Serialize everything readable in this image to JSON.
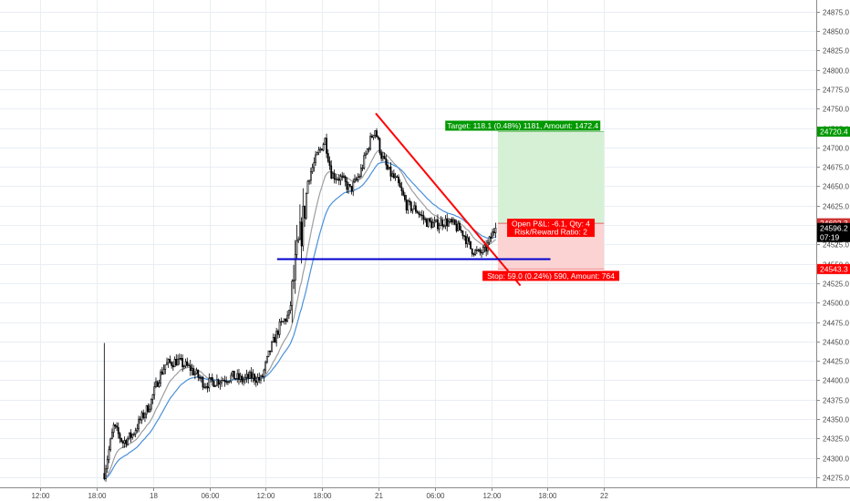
{
  "chart_data": {
    "type": "candlestick",
    "grid": true,
    "y_axis_position": "right",
    "ylim": [
      24262,
      24890
    ],
    "y_ticks": [
      24275,
      24300,
      24325,
      24350,
      24375,
      24400,
      24425,
      24450,
      24475,
      24500,
      24525,
      24550,
      24575,
      24600,
      24625,
      24650,
      24675,
      24700,
      24725,
      24750,
      24775,
      24800,
      24825,
      24850,
      24875
    ],
    "y_tick_labels": [
      "24275.0",
      "24300.0",
      "24325.0",
      "24350.0",
      "24375.0",
      "24400.0",
      "24425.0",
      "24450.0",
      "24475.0",
      "24500.0",
      "24525.0",
      "24550.0",
      "24575.0",
      "24600.0",
      "24625.0",
      "24650.0",
      "24675.0",
      "24700.0",
      "24725.0",
      "24750.0",
      "24775.0",
      "24800.0",
      "24825.0",
      "24850.0",
      "24875.0"
    ],
    "x_hours_range": [
      -16.3,
      70.6
    ],
    "x_ticks": [
      {
        "label": "12:00",
        "hour": -12
      },
      {
        "label": "18:00",
        "hour": -6
      },
      {
        "label": "18",
        "hour": 0
      },
      {
        "label": "06:00",
        "hour": 6
      },
      {
        "label": "12:00",
        "hour": 12
      },
      {
        "label": "18:00",
        "hour": 18
      },
      {
        "label": "21",
        "hour": 24
      },
      {
        "label": "06:00",
        "hour": 30
      },
      {
        "label": "12:00",
        "hour": 36
      },
      {
        "label": "18:00",
        "hour": 42
      },
      {
        "label": "22",
        "hour": 48
      }
    ],
    "price_keys": [
      [
        -5.2,
        24280
      ],
      [
        -4.2,
        24340
      ],
      [
        -3.2,
        24320
      ],
      [
        -2.2,
        24330
      ],
      [
        -1.3,
        24350
      ],
      [
        -0.3,
        24370
      ],
      [
        0.5,
        24400
      ],
      [
        1.3,
        24420
      ],
      [
        2.5,
        24425
      ],
      [
        4.0,
        24415
      ],
      [
        5.5,
        24395
      ],
      [
        7.0,
        24400
      ],
      [
        8.5,
        24405
      ],
      [
        9.5,
        24400
      ],
      [
        10.5,
        24405
      ],
      [
        11.5,
        24400
      ],
      [
        12.5,
        24440
      ],
      [
        13.5,
        24470
      ],
      [
        14.5,
        24485
      ],
      [
        15.3,
        24560
      ],
      [
        15.9,
        24600
      ],
      [
        16.5,
        24660
      ],
      [
        17.5,
        24690
      ],
      [
        18.3,
        24710
      ],
      [
        19.0,
        24665
      ],
      [
        20.0,
        24660
      ],
      [
        21.0,
        24645
      ],
      [
        22.0,
        24665
      ],
      [
        23.0,
        24705
      ],
      [
        23.6,
        24725
      ],
      [
        24.3,
        24690
      ],
      [
        25.0,
        24670
      ],
      [
        26.0,
        24655
      ],
      [
        27.0,
        24625
      ],
      [
        28.0,
        24620
      ],
      [
        29.0,
        24605
      ],
      [
        30.0,
        24600
      ],
      [
        31.0,
        24605
      ],
      [
        32.0,
        24600
      ],
      [
        33.0,
        24590
      ],
      [
        33.8,
        24570
      ],
      [
        34.6,
        24563
      ],
      [
        35.4,
        24568
      ],
      [
        36.0,
        24585
      ],
      [
        36.5,
        24598
      ]
    ],
    "ema_fast_color": "#4a90d9",
    "ema_slow_color": "#9e9e9e",
    "spike_high": {
      "hour": -6.6,
      "value": 24448
    },
    "trendline": {
      "color": "#ff0000",
      "start": {
        "hour": 23.7,
        "value": 24744
      },
      "end": {
        "hour": 39.1,
        "value": 24522
      }
    },
    "support_line": {
      "color": "#0000cc",
      "start": {
        "hour": 13.2,
        "value": 24556
      },
      "end": {
        "hour": 42.3,
        "value": 24556
      }
    },
    "position": {
      "entry": 24602.3,
      "target_price": 24720.4,
      "stop_price": 24543.3,
      "start_hour": 36.7,
      "end_hour": 48.0,
      "target_label": "Target: 118.1 (0.48%) 1181, Amount: 1472.4",
      "stop_label": "Stop: 59.0 (0.24%) 590, Amount: 764",
      "pnl_label": "Open P&L: -6.1, Qty: 4",
      "rr_label": "Risk/Reward Ratio: 2",
      "target_color": "#009900",
      "stop_color": "#ff0000",
      "target_fill": "#d6f0d6",
      "stop_fill": "#fbd3d3"
    },
    "axis_tags": [
      {
        "label": "24720.4",
        "value": 24720.4,
        "color": "#009900"
      },
      {
        "label": "24602.3",
        "value": 24602.3,
        "color": "#cc3333"
      },
      {
        "label": "24596.2",
        "value": 24596.2,
        "color": "#000000"
      },
      {
        "label": "07:19",
        "value": 24584.5,
        "color": "#000000"
      },
      {
        "label": "24543.3",
        "value": 24543.3,
        "color": "#ff0000"
      }
    ],
    "axis_partial_label": "2"
  }
}
